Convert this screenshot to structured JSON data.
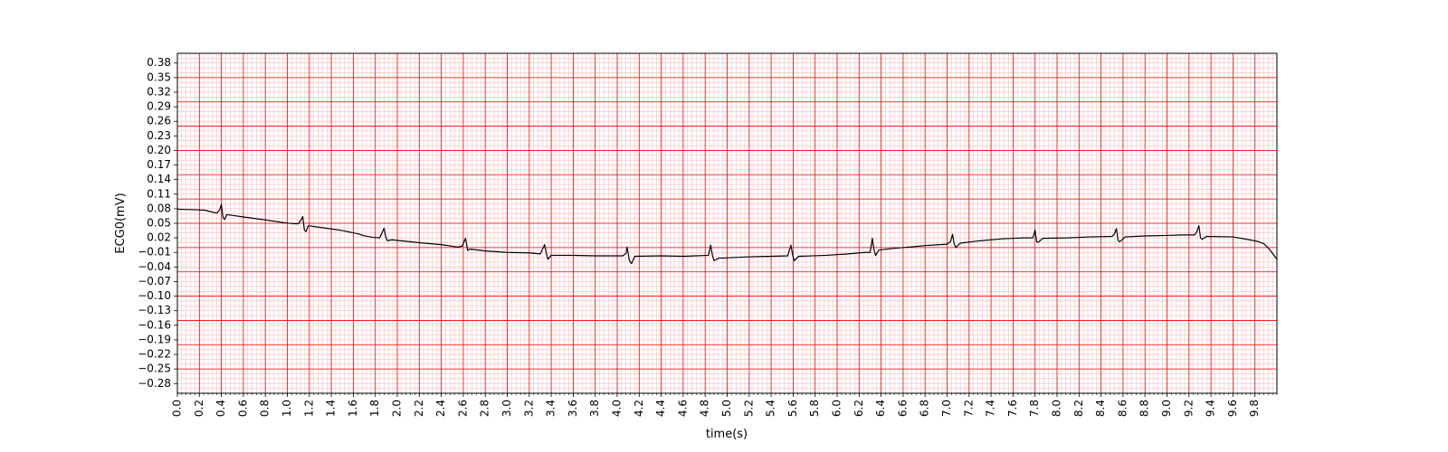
{
  "chart_data": {
    "type": "line",
    "xlabel": "time(s)",
    "ylabel": "ECG0(mV)",
    "xlim": [
      0,
      10
    ],
    "ylim": [
      -0.3,
      0.4
    ],
    "grid": "ecg-paper",
    "colors": {
      "line": "#000000",
      "grid_major": "#ff0000",
      "grid_minor": "#ffb0b0",
      "background": "#ffffff"
    },
    "x_ticks": [
      0.0,
      0.2,
      0.4,
      0.6,
      0.8,
      1.0,
      1.2,
      1.4,
      1.6,
      1.8,
      2.0,
      2.2,
      2.4,
      2.6,
      2.8,
      3.0,
      3.2,
      3.4,
      3.6,
      3.8,
      4.0,
      4.2,
      4.4,
      4.6,
      4.8,
      5.0,
      5.2,
      5.4,
      5.6,
      5.8,
      6.0,
      6.2,
      6.4,
      6.6,
      6.8,
      7.0,
      7.2,
      7.4,
      7.6,
      7.8,
      8.0,
      8.2,
      8.4,
      8.6,
      8.8,
      9.0,
      9.2,
      9.4,
      9.6,
      9.8
    ],
    "x_tick_labels": [
      "0.0",
      "0.2",
      "0.4",
      "0.6",
      "0.8",
      "1.0",
      "1.2",
      "1.4",
      "1.6",
      "1.8",
      "2.0",
      "2.2",
      "2.4",
      "2.6",
      "2.8",
      "3.0",
      "3.2",
      "3.4",
      "3.6",
      "3.8",
      "4.0",
      "4.2",
      "4.4",
      "4.6",
      "4.8",
      "5.0",
      "5.2",
      "5.4",
      "5.6",
      "5.8",
      "6.0",
      "6.2",
      "6.4",
      "6.6",
      "6.8",
      "7.0",
      "7.2",
      "7.4",
      "7.6",
      "7.8",
      "8.0",
      "8.2",
      "8.4",
      "8.6",
      "8.8",
      "9.0",
      "9.2",
      "9.4",
      "9.6",
      "9.8"
    ],
    "y_ticks": [
      0.38,
      0.35,
      0.32,
      0.29,
      0.26,
      0.23,
      0.2,
      0.17,
      0.14,
      0.11,
      0.08,
      0.05,
      0.02,
      -0.01,
      -0.04,
      -0.07,
      -0.1,
      -0.13,
      -0.16,
      -0.19,
      -0.22,
      -0.25,
      -0.28
    ],
    "y_tick_labels": [
      "0.38",
      "0.35",
      "0.32",
      "0.29",
      "0.26",
      "0.23",
      "0.20",
      "0.17",
      "0.14",
      "0.11",
      "0.08",
      "0.05",
      "0.02",
      "−0.01",
      "−0.04",
      "−0.07",
      "−0.10",
      "−0.13",
      "−0.16",
      "−0.19",
      "−0.22",
      "−0.25",
      "−0.28"
    ],
    "series": [
      {
        "points": [
          [
            0.0,
            0.079
          ],
          [
            0.15,
            0.078
          ],
          [
            0.25,
            0.077
          ],
          [
            0.3,
            0.074
          ],
          [
            0.36,
            0.071
          ],
          [
            0.385,
            0.078
          ],
          [
            0.4,
            0.089
          ],
          [
            0.415,
            0.062
          ],
          [
            0.43,
            0.058
          ],
          [
            0.45,
            0.068
          ],
          [
            0.6,
            0.063
          ],
          [
            0.8,
            0.057
          ],
          [
            0.95,
            0.052
          ],
          [
            1.06,
            0.049
          ],
          [
            1.1,
            0.049
          ],
          [
            1.125,
            0.057
          ],
          [
            1.14,
            0.064
          ],
          [
            1.155,
            0.036
          ],
          [
            1.17,
            0.033
          ],
          [
            1.19,
            0.045
          ],
          [
            1.35,
            0.04
          ],
          [
            1.5,
            0.035
          ],
          [
            1.65,
            0.028
          ],
          [
            1.7,
            0.024
          ],
          [
            1.78,
            0.021
          ],
          [
            1.84,
            0.02
          ],
          [
            1.86,
            0.03
          ],
          [
            1.88,
            0.04
          ],
          [
            1.895,
            0.022
          ],
          [
            1.91,
            0.014
          ],
          [
            1.95,
            0.016
          ],
          [
            2.2,
            0.01
          ],
          [
            2.4,
            0.006
          ],
          [
            2.55,
            0.001
          ],
          [
            2.59,
            0.003
          ],
          [
            2.62,
            0.019
          ],
          [
            2.64,
            -0.006
          ],
          [
            2.66,
            -0.003
          ],
          [
            2.8,
            -0.007
          ],
          [
            3.0,
            -0.01
          ],
          [
            3.2,
            -0.011
          ],
          [
            3.3,
            -0.013
          ],
          [
            3.34,
            0.006
          ],
          [
            3.355,
            -0.012
          ],
          [
            3.37,
            -0.024
          ],
          [
            3.4,
            -0.016
          ],
          [
            3.6,
            -0.016
          ],
          [
            3.8,
            -0.017
          ],
          [
            4.05,
            -0.017
          ],
          [
            4.08,
            -0.012
          ],
          [
            4.09,
            0.001
          ],
          [
            4.11,
            -0.026
          ],
          [
            4.13,
            -0.033
          ],
          [
            4.16,
            -0.018
          ],
          [
            4.4,
            -0.017
          ],
          [
            4.6,
            -0.018
          ],
          [
            4.83,
            -0.016
          ],
          [
            4.85,
            0.005
          ],
          [
            4.865,
            -0.015
          ],
          [
            4.88,
            -0.027
          ],
          [
            4.92,
            -0.022
          ],
          [
            5.2,
            -0.019
          ],
          [
            5.4,
            -0.018
          ],
          [
            5.55,
            -0.017
          ],
          [
            5.58,
            0.005
          ],
          [
            5.595,
            -0.015
          ],
          [
            5.61,
            -0.027
          ],
          [
            5.65,
            -0.018
          ],
          [
            5.9,
            -0.016
          ],
          [
            6.1,
            -0.013
          ],
          [
            6.25,
            -0.01
          ],
          [
            6.3,
            -0.01
          ],
          [
            6.32,
            0.019
          ],
          [
            6.335,
            -0.004
          ],
          [
            6.35,
            -0.016
          ],
          [
            6.38,
            -0.005
          ],
          [
            6.5,
            -0.002
          ],
          [
            6.8,
            0.004
          ],
          [
            7.0,
            0.007
          ],
          [
            7.03,
            0.012
          ],
          [
            7.05,
            0.027
          ],
          [
            7.065,
            0.007
          ],
          [
            7.08,
            0.0
          ],
          [
            7.12,
            0.009
          ],
          [
            7.3,
            0.014
          ],
          [
            7.5,
            0.018
          ],
          [
            7.7,
            0.02
          ],
          [
            7.78,
            0.02
          ],
          [
            7.8,
            0.036
          ],
          [
            7.815,
            0.012
          ],
          [
            7.83,
            0.011
          ],
          [
            7.87,
            0.019
          ],
          [
            8.1,
            0.02
          ],
          [
            8.3,
            0.022
          ],
          [
            8.5,
            0.023
          ],
          [
            8.52,
            0.027
          ],
          [
            8.54,
            0.039
          ],
          [
            8.555,
            0.015
          ],
          [
            8.57,
            0.012
          ],
          [
            8.62,
            0.022
          ],
          [
            8.8,
            0.024
          ],
          [
            9.0,
            0.025
          ],
          [
            9.15,
            0.026
          ],
          [
            9.25,
            0.026
          ],
          [
            9.27,
            0.032
          ],
          [
            9.29,
            0.045
          ],
          [
            9.305,
            0.02
          ],
          [
            9.32,
            0.017
          ],
          [
            9.36,
            0.023
          ],
          [
            9.6,
            0.022
          ],
          [
            9.75,
            0.016
          ],
          [
            9.82,
            0.013
          ],
          [
            9.88,
            0.008
          ],
          [
            9.93,
            -0.003
          ],
          [
            10.0,
            -0.024
          ]
        ]
      }
    ]
  }
}
